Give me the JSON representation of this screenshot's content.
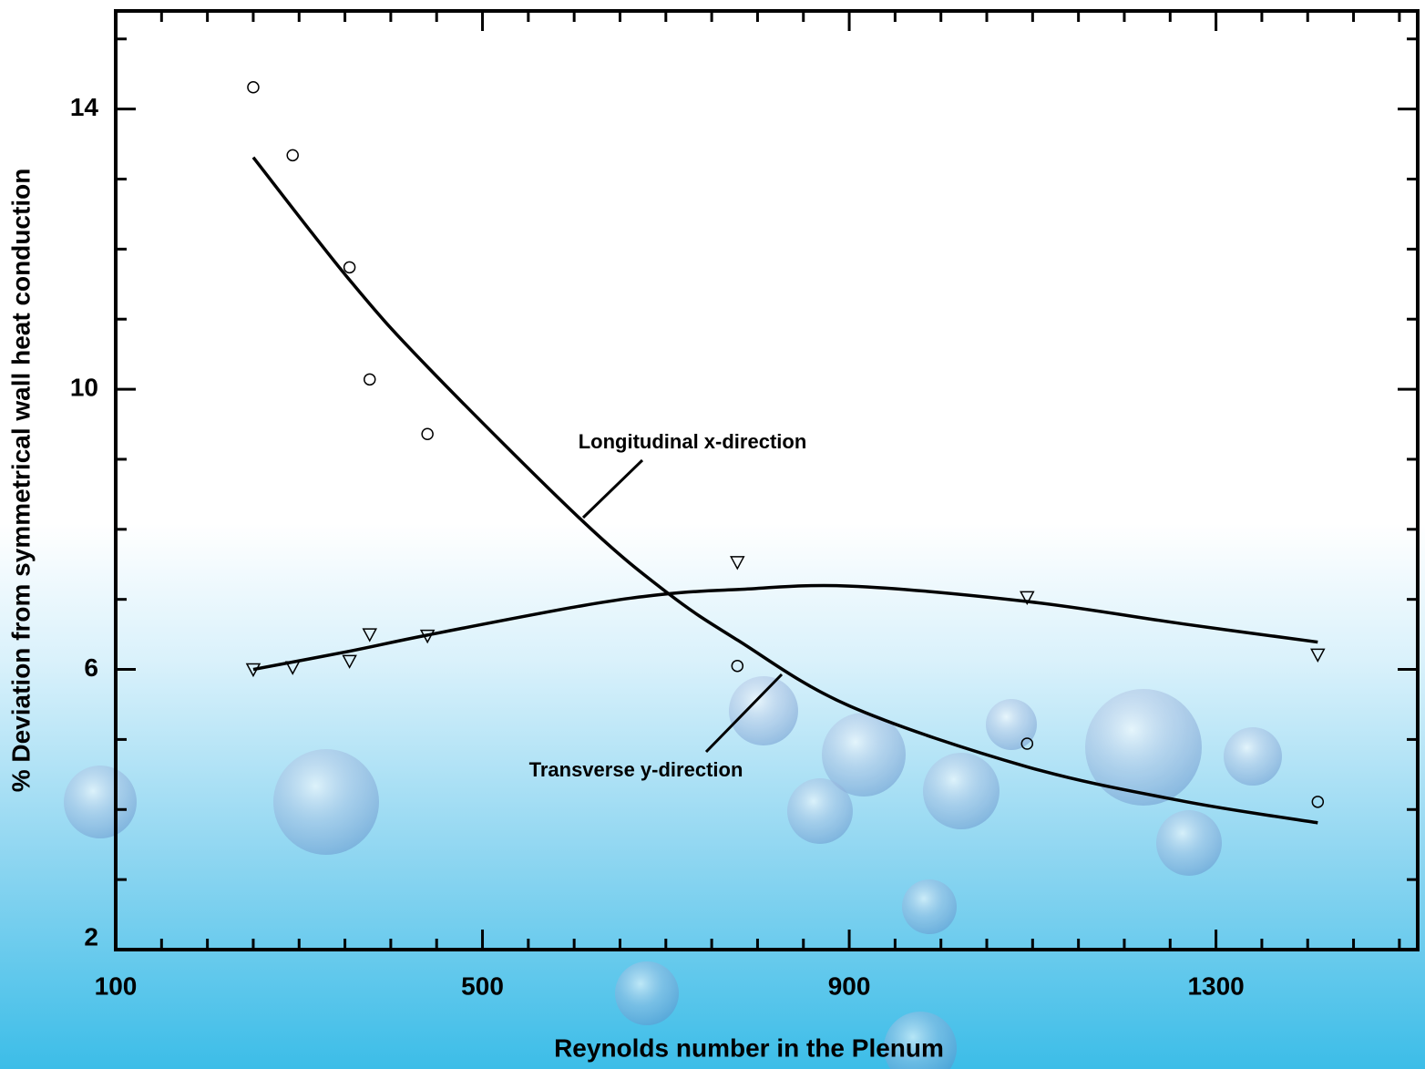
{
  "chart_data": {
    "type": "scatter",
    "xlabel": "Reynolds number in the Plenum",
    "ylabel": "% Deviation from symmetrical wall heat conduction",
    "xlim": [
      100,
      1520
    ],
    "ylim": [
      2,
      15.4
    ],
    "xticks": [
      100,
      500,
      900,
      1300
    ],
    "xminorticks": [
      150,
      200,
      250,
      300,
      350,
      400,
      450,
      550,
      600,
      650,
      700,
      750,
      800,
      850,
      950,
      1000,
      1050,
      1100,
      1150,
      1200,
      1250,
      1350,
      1400,
      1450,
      1500
    ],
    "yticks": [
      2,
      6,
      10,
      14
    ],
    "yminorticks": [
      3,
      4,
      5,
      7,
      8,
      9,
      11,
      12,
      13,
      15
    ],
    "color": "#000000",
    "series": [
      {
        "marker": "circle",
        "x": [
          250,
          293,
          355,
          377,
          440,
          778,
          1094,
          1411
        ],
        "values": [
          14.31,
          13.34,
          11.74,
          10.14,
          9.36,
          6.05,
          4.94,
          4.11
        ]
      },
      {
        "marker": "triangle-down",
        "x": [
          250,
          293,
          355,
          377,
          440,
          778,
          1094,
          1411
        ],
        "values": [
          6.0,
          6.03,
          6.12,
          6.5,
          6.48,
          7.53,
          7.03,
          6.21
        ]
      }
    ],
    "fits": [
      {
        "x": [
          250,
          355,
          440,
          609,
          703,
          778,
          900,
          1094,
          1264,
          1411
        ],
        "values": [
          13.31,
          11.56,
          10.32,
          8.12,
          7.08,
          6.42,
          5.48,
          4.61,
          4.12,
          3.81
        ]
      },
      {
        "x": [
          250,
          355,
          440,
          609,
          703,
          778,
          900,
          1094,
          1264,
          1411
        ],
        "values": [
          6.0,
          6.26,
          6.49,
          6.91,
          7.08,
          7.14,
          7.19,
          6.97,
          6.65,
          6.39
        ]
      }
    ],
    "annotations": [
      {
        "text": "Longitudinal x-direction"
      },
      {
        "text": "Transverse y-direction"
      }
    ]
  }
}
